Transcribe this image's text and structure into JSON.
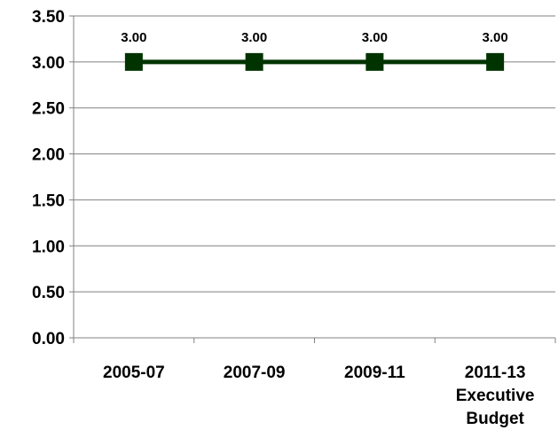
{
  "chart_data": {
    "type": "line",
    "title": "",
    "xlabel": "",
    "ylabel": "",
    "categories": [
      [
        "2005-07"
      ],
      [
        "2007-09"
      ],
      [
        "2009-11"
      ],
      [
        "2011-13",
        "Executive",
        "Budget"
      ]
    ],
    "series": [
      {
        "values": [
          3.0,
          3.0,
          3.0,
          3.0
        ],
        "data_labels": [
          "3.00",
          "3.00",
          "3.00",
          "3.00"
        ],
        "color": "#003300",
        "marker": "square"
      }
    ],
    "ylim": [
      0,
      3.5
    ],
    "yticks": [
      0,
      0.5,
      1.0,
      1.5,
      2.0,
      2.5,
      3.0,
      3.5
    ],
    "ytick_labels": [
      "0.00",
      "0.50",
      "1.00",
      "1.50",
      "2.00",
      "2.50",
      "3.00",
      "3.50"
    ],
    "grid": true,
    "legend": "none",
    "colors": {
      "gridline": "#808080",
      "axis": "#808080",
      "line": "#003300"
    }
  }
}
